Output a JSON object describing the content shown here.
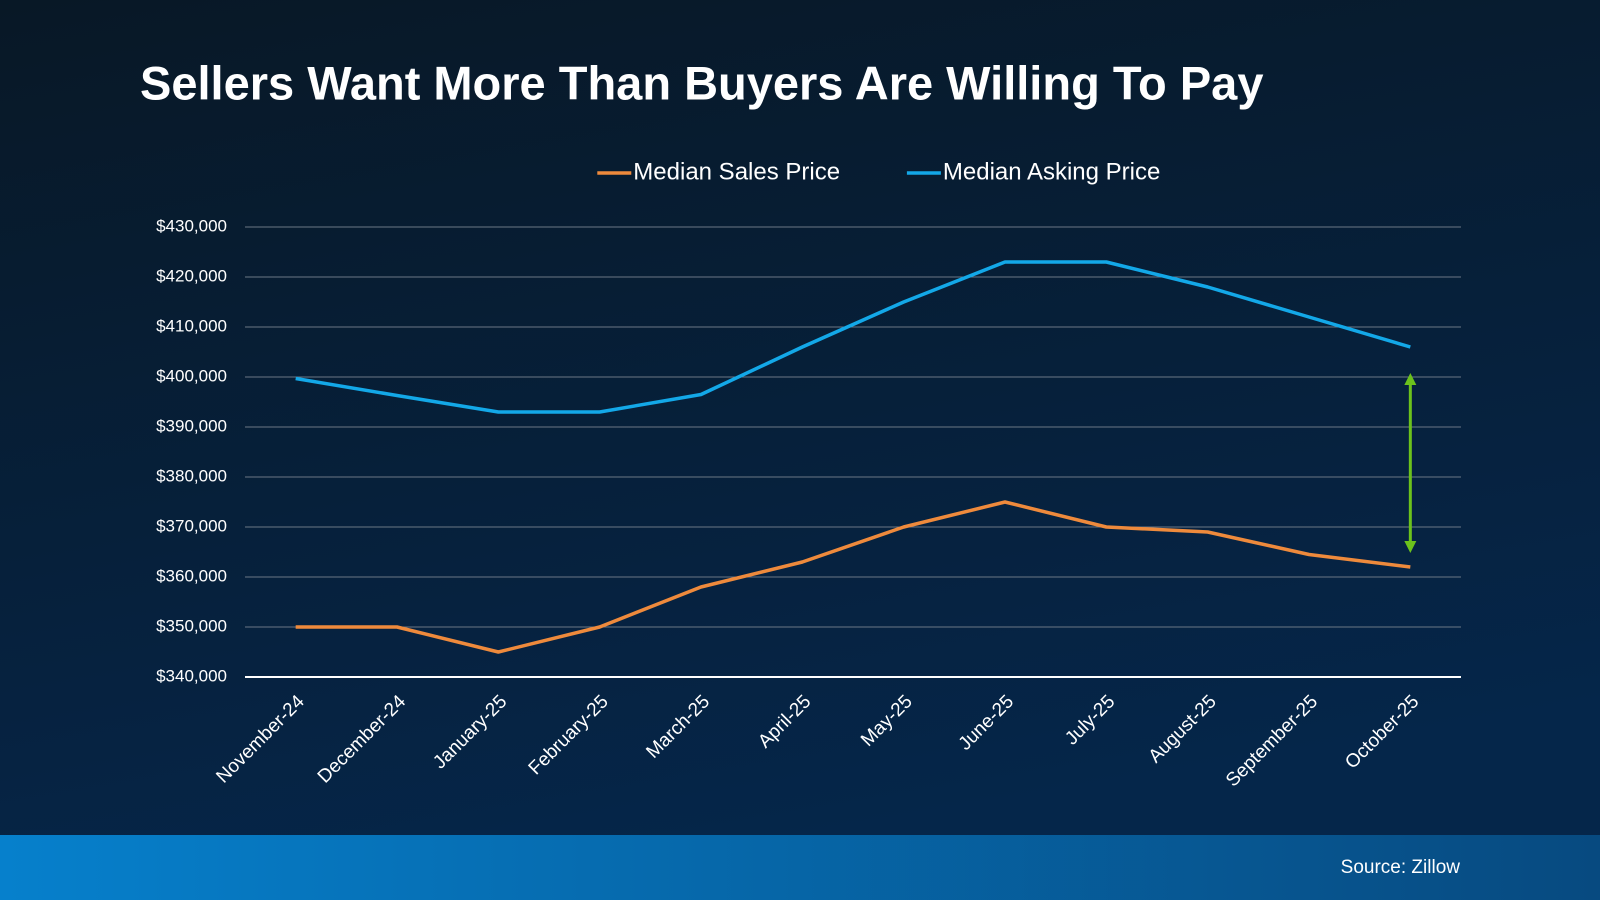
{
  "chart_data": {
    "type": "line",
    "title": "Sellers Want More Than Buyers Are Willing To Pay",
    "source": "Source: Zillow",
    "categories": [
      "November-24",
      "December-24",
      "January-25",
      "February-25",
      "March-25",
      "April-25",
      "May-25",
      "June-25",
      "July-25",
      "August-25",
      "September-25",
      "October-25"
    ],
    "series": [
      {
        "name": "Median Sales Price",
        "color": "#ee8a3c",
        "values": [
          350000,
          350000,
          345000,
          350000,
          358000,
          363000,
          370000,
          375000,
          370000,
          369000,
          364500,
          362000
        ]
      },
      {
        "name": "Median Asking Price",
        "color": "#13a8e8",
        "values": [
          399700,
          396300,
          393000,
          393000,
          396500,
          406000,
          415000,
          423000,
          423000,
          418000,
          412000,
          406000
        ]
      }
    ],
    "ylim": [
      340000,
      430000
    ],
    "yticks": [
      {
        "value": 340000,
        "label": "$340,000"
      },
      {
        "value": 350000,
        "label": "$350,000"
      },
      {
        "value": 360000,
        "label": "$360,000"
      },
      {
        "value": 370000,
        "label": "$370,000"
      },
      {
        "value": 380000,
        "label": "$380,000"
      },
      {
        "value": 390000,
        "label": "$390,000"
      },
      {
        "value": 400000,
        "label": "$400,000"
      },
      {
        "value": 410000,
        "label": "$410,000"
      },
      {
        "value": 420000,
        "label": "$420,000"
      },
      {
        "value": 430000,
        "label": "$430,000"
      }
    ],
    "grid": true,
    "legend": "top"
  }
}
